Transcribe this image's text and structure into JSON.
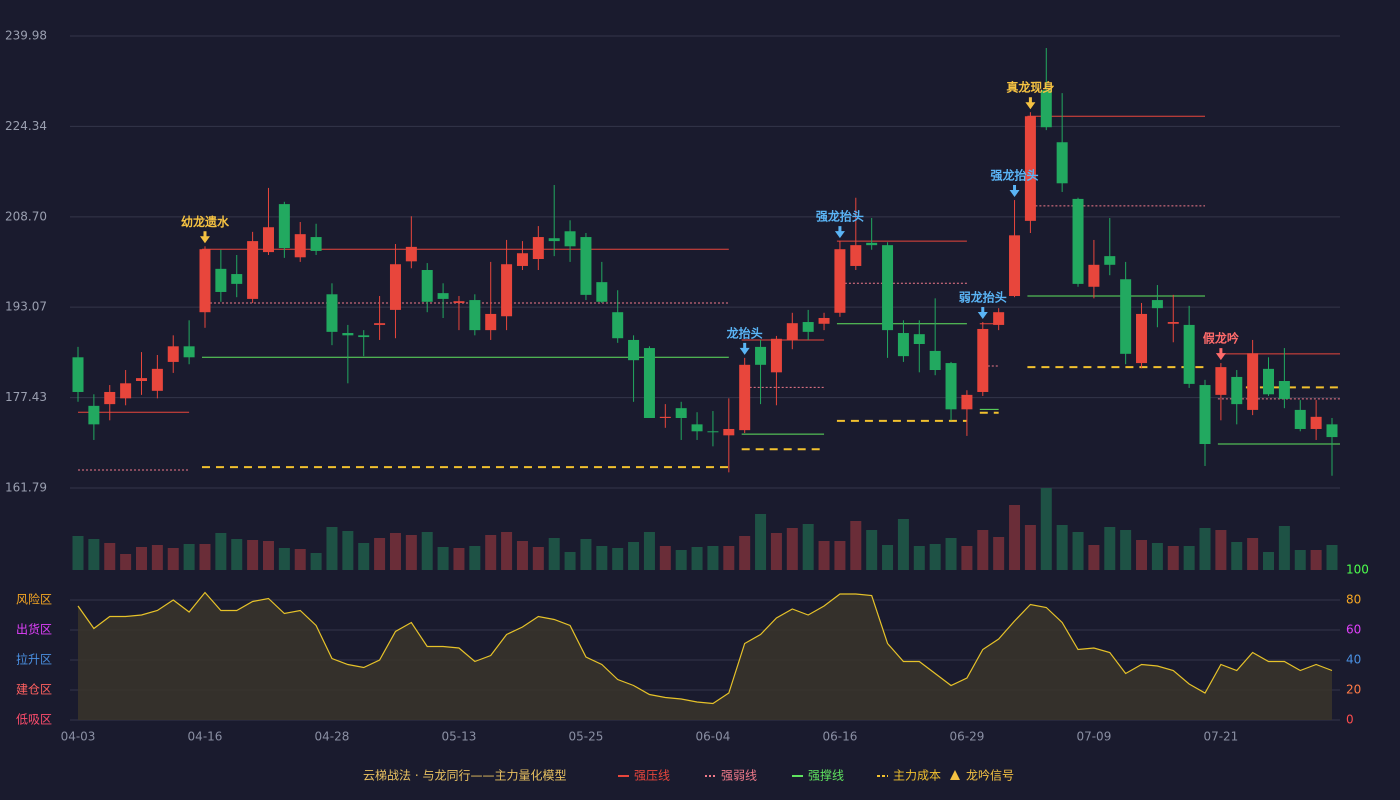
{
  "chart_data": [
    {
      "type": "candlestick",
      "categories": [
        "04-03",
        null,
        null,
        null,
        null,
        null,
        null,
        null,
        "04-16",
        null,
        null,
        null,
        null,
        null,
        null,
        null,
        "04-28",
        null,
        null,
        null,
        null,
        null,
        null,
        null,
        "05-13",
        null,
        null,
        null,
        null,
        null,
        null,
        null,
        "05-25",
        null,
        null,
        null,
        null,
        null,
        null,
        null,
        "06-04",
        null,
        null,
        null,
        null,
        null,
        null,
        null,
        "06-16",
        null,
        null,
        null,
        null,
        null,
        null,
        null,
        "06-29",
        null,
        null,
        null,
        null,
        null,
        null,
        null,
        "07-09",
        null,
        null,
        null,
        null,
        null,
        null,
        null,
        "07-21",
        null,
        null,
        null,
        null,
        null,
        null,
        null
      ],
      "open": [
        184.4,
        176.0,
        176.3,
        177.3,
        180.3,
        178.6,
        183.6,
        186.3,
        192.2,
        199.7,
        198.8,
        194.5,
        202.6,
        210.9,
        201.7,
        205.2,
        195.3,
        188.6,
        188.2,
        190.0,
        192.6,
        201.0,
        199.5,
        195.5,
        193.8,
        194.3,
        189.1,
        191.5,
        200.2,
        201.4,
        205.0,
        206.2,
        205.2,
        197.4,
        192.2,
        187.4,
        186.0,
        173.9,
        175.6,
        172.8,
        171.6,
        170.9,
        171.8,
        186.2,
        181.8,
        187.4,
        190.5,
        190.2,
        192.1,
        200.2,
        204.2,
        203.8,
        188.6,
        188.4,
        185.5,
        183.4,
        175.4,
        178.4,
        190.0,
        195.0,
        208.0,
        230.6,
        221.6,
        211.8,
        196.6,
        201.9,
        197.9,
        183.4,
        194.3,
        190.2,
        190.0,
        179.6,
        177.9,
        181.0,
        175.3,
        182.4,
        180.3,
        175.3,
        172.0,
        172.8
      ],
      "high": [
        186.2,
        178.0,
        179.6,
        182.2,
        185.3,
        184.8,
        188.2,
        190.8,
        203.6,
        203.0,
        202.1,
        206.1,
        213.7,
        211.3,
        207.8,
        207.5,
        197.2,
        190.0,
        189.1,
        195.0,
        204.0,
        208.8,
        200.7,
        197.2,
        195.0,
        195.3,
        200.9,
        204.7,
        204.5,
        207.1,
        214.2,
        208.1,
        205.9,
        200.9,
        196.0,
        188.2,
        186.3,
        176.3,
        176.7,
        174.9,
        175.1,
        177.3,
        184.3,
        187.4,
        188.1,
        192.1,
        192.6,
        192.1,
        204.5,
        212.0,
        208.5,
        204.3,
        190.8,
        190.8,
        194.6,
        183.6,
        178.7,
        190.5,
        192.9,
        211.6,
        226.8,
        237.9,
        230.1,
        212.0,
        204.7,
        208.5,
        200.9,
        193.8,
        196.9,
        195.2,
        193.3,
        180.5,
        183.4,
        182.2,
        187.4,
        184.4,
        186.0,
        177.0,
        177.0,
        173.9
      ],
      "low": [
        176.7,
        170.1,
        173.5,
        176.1,
        177.9,
        177.3,
        181.7,
        183.2,
        189.5,
        194.0,
        194.8,
        193.8,
        202.1,
        201.6,
        200.9,
        202.1,
        186.5,
        179.9,
        184.6,
        187.4,
        187.7,
        199.8,
        192.2,
        191.2,
        189.1,
        188.2,
        187.4,
        189.1,
        199.5,
        199.5,
        201.9,
        200.9,
        194.3,
        193.8,
        186.9,
        176.7,
        173.9,
        172.2,
        170.1,
        170.1,
        169.0,
        164.5,
        171.3,
        176.3,
        176.1,
        185.8,
        187.4,
        189.1,
        191.4,
        199.5,
        203.0,
        184.3,
        183.6,
        181.8,
        181.3,
        173.5,
        170.8,
        177.7,
        189.1,
        194.8,
        205.9,
        223.7,
        213.0,
        196.6,
        194.6,
        198.6,
        183.2,
        182.5,
        189.6,
        187.0,
        179.1,
        165.6,
        173.5,
        172.8,
        174.4,
        177.7,
        175.6,
        171.6,
        170.1,
        163.9
      ],
      "close": [
        178.4,
        172.8,
        178.4,
        179.9,
        180.8,
        182.4,
        186.3,
        184.4,
        203.1,
        195.7,
        197.1,
        204.5,
        206.9,
        203.3,
        205.7,
        202.8,
        188.8,
        188.2,
        187.9,
        190.3,
        200.5,
        203.5,
        194.0,
        194.5,
        194.1,
        189.1,
        191.9,
        200.5,
        202.4,
        205.2,
        204.5,
        203.6,
        195.2,
        194.0,
        187.7,
        183.9,
        173.9,
        174.1,
        173.9,
        171.6,
        171.5,
        172.0,
        183.1,
        183.1,
        187.6,
        190.3,
        188.8,
        191.2,
        203.1,
        203.8,
        203.8,
        189.1,
        184.6,
        186.7,
        182.2,
        175.4,
        177.9,
        189.3,
        192.2,
        205.5,
        226.1,
        224.2,
        214.5,
        197.1,
        200.4,
        200.4,
        185.0,
        191.9,
        192.9,
        190.5,
        179.8,
        169.4,
        182.7,
        176.3,
        185.1,
        178.0,
        177.2,
        172.0,
        174.1,
        170.6
      ],
      "up_color": "#e8463c",
      "down_color": "#22a960",
      "ylim": [
        161.79,
        239.98
      ],
      "yticks": [
        161.79,
        177.43,
        193.07,
        {
          "value": 208.7,
          "label": "208.70"
        },
        224.34,
        239.98
      ],
      "grid": true,
      "levels": [
        {
          "name": "强压线",
          "color": "#e8463c",
          "style": "solid",
          "segments": [
            {
              "from": 0,
              "to": 7,
              "value": 174.9
            },
            {
              "from": 8,
              "to": 41,
              "value": 203.1
            },
            {
              "from": 42,
              "to": 47,
              "value": 187.4
            },
            {
              "from": 48,
              "to": 56,
              "value": 204.5
            },
            {
              "from": 57,
              "to": 58,
              "value": 190.2
            },
            {
              "from": 60,
              "to": 71,
              "value": 226.1
            },
            {
              "from": 72,
              "to": 79,
              "value": 185.0
            }
          ]
        },
        {
          "name": "强弱线",
          "color": "#f07a8a",
          "style": "dotted",
          "segments": [
            {
              "from": 0,
              "to": 7,
              "value": 164.9
            },
            {
              "from": 8,
              "to": 41,
              "value": 193.8
            },
            {
              "from": 42,
              "to": 47,
              "value": 179.2
            },
            {
              "from": 48,
              "to": 56,
              "value": 197.2
            },
            {
              "from": 57,
              "to": 58,
              "value": 182.9
            },
            {
              "from": 60,
              "to": 71,
              "value": 210.6
            },
            {
              "from": 72,
              "to": 79,
              "value": 177.2
            }
          ]
        },
        {
          "name": "强撑线",
          "color": "#5fe35f",
          "style": "solid",
          "segments": [
            {
              "from": 8,
              "to": 41,
              "value": 184.4
            },
            {
              "from": 42,
              "to": 47,
              "value": 171.1
            },
            {
              "from": 48,
              "to": 56,
              "value": 190.2
            },
            {
              "from": 57,
              "to": 58,
              "value": 175.4
            },
            {
              "from": 60,
              "to": 71,
              "value": 195.0
            },
            {
              "from": 72,
              "to": 79,
              "value": 169.4
            }
          ]
        },
        {
          "name": "主力成本",
          "color": "#f2c12e",
          "style": "dashed",
          "segments": [
            {
              "from": 8,
              "to": 41,
              "value": 165.4
            },
            {
              "from": 42,
              "to": 47,
              "value": 168.5
            },
            {
              "from": 48,
              "to": 56,
              "value": 173.4
            },
            {
              "from": 57,
              "to": 58,
              "value": 174.8
            },
            {
              "from": 60,
              "to": 71,
              "value": 182.7
            },
            {
              "from": 72,
              "to": 79,
              "value": 179.2
            }
          ]
        }
      ],
      "signals": [
        {
          "index": 8,
          "label": "幼龙遗水",
          "color": "#f5c242"
        },
        {
          "index": 42,
          "label": "龙抬头",
          "color": "#5ab4f5"
        },
        {
          "index": 48,
          "label": "强龙抬头",
          "color": "#5ab4f5"
        },
        {
          "index": 57,
          "label": "弱龙抬头",
          "color": "#5ab4f5"
        },
        {
          "index": 59,
          "label": "强龙抬头",
          "color": "#5ab4f5"
        },
        {
          "index": 60,
          "label": "真龙现身",
          "color": "#f5c242"
        },
        {
          "index": 72,
          "label": "假龙吟",
          "color": "#ff6b6b"
        }
      ]
    },
    {
      "type": "bar",
      "values": [
        34,
        31,
        27,
        16,
        23,
        25,
        22,
        26,
        26,
        37,
        31,
        30,
        29,
        22,
        21,
        17,
        43,
        39,
        27,
        32,
        37,
        35,
        38,
        23,
        22,
        24,
        35,
        38,
        29,
        23,
        32,
        18,
        31,
        24,
        22,
        28,
        38,
        24,
        20,
        23,
        24,
        24,
        34,
        56,
        37,
        42,
        46,
        29,
        29,
        49,
        40,
        25,
        51,
        24,
        26,
        32,
        24,
        40,
        33,
        65,
        45,
        82,
        45,
        38,
        25,
        43,
        40,
        30,
        27,
        24,
        24,
        42,
        40,
        28,
        32,
        18,
        44,
        20,
        20,
        25
      ],
      "up_color": "#6a2d38",
      "down_color": "#1e5245"
    },
    {
      "type": "line",
      "values": [
        76,
        61,
        69,
        69,
        70,
        73,
        80,
        72,
        85,
        73,
        73,
        79,
        81,
        71,
        73,
        63,
        41,
        37,
        35,
        40,
        59,
        65,
        49,
        49,
        48,
        39,
        43,
        57,
        62,
        69,
        67,
        63,
        42,
        37,
        27,
        23,
        17,
        15,
        14,
        12,
        11,
        18,
        51,
        57,
        68,
        74,
        70,
        76,
        84,
        84,
        83,
        51,
        39,
        39,
        31,
        23,
        28,
        47,
        54,
        66,
        77,
        75,
        65,
        47,
        48,
        45,
        31,
        37,
        36,
        33,
        24,
        18,
        37,
        33,
        45,
        39,
        39,
        33,
        37,
        33
      ],
      "color": "#e6c229",
      "ylim": [
        0,
        100
      ],
      "yticks": [
        0,
        20,
        40,
        60,
        80,
        100
      ],
      "ytick_colors": [
        "#ff4d4d",
        "#ff7a45",
        "#4a90e2",
        "#e040fb",
        "#f5a623",
        "#4cff4c"
      ],
      "zones": [
        {
          "label": "风险区",
          "value": 80,
          "color": "#f5a623"
        },
        {
          "label": "出货区",
          "value": 60,
          "color": "#e040fb"
        },
        {
          "label": "拉升区",
          "value": 40,
          "color": "#4a90e2"
        },
        {
          "label": "建仓区",
          "value": 20,
          "color": "#ff6060"
        },
        {
          "label": "低吸区",
          "value": 0,
          "color": "#ff4d6d"
        }
      ]
    }
  ],
  "legend": {
    "title": "云梯战法 · 与龙同行——主力量化模型",
    "title_color": "#e8c060",
    "signal_label": "龙吟信号",
    "signal_color": "#f5c242"
  }
}
